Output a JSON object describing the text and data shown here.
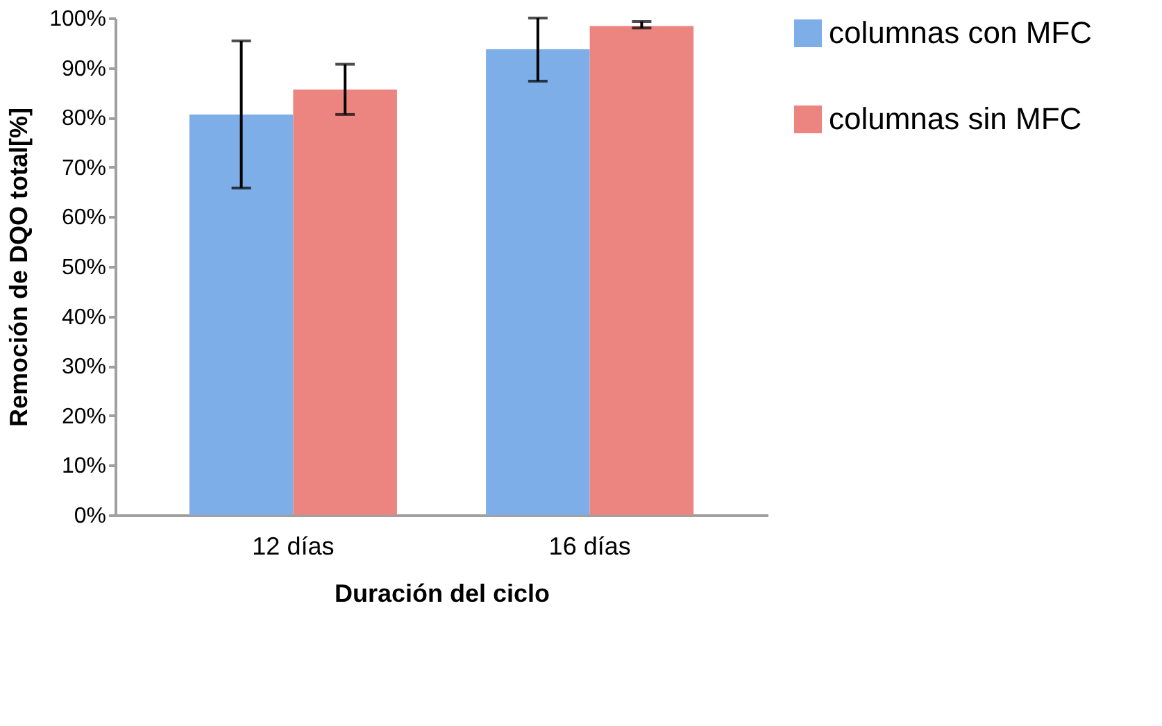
{
  "chart_data": {
    "type": "bar",
    "xlabel": "Duración del ciclo",
    "ylabel": "Remoción de DQO total[%]",
    "categories": [
      "12 días",
      "16 días"
    ],
    "series": [
      {
        "name": "columnas con MFC",
        "color": "#7eaee8",
        "values": [
          80.6,
          93.7
        ],
        "errors": [
          [
            65.8,
            95.4
          ],
          [
            87.3,
            100
          ]
        ]
      },
      {
        "name": "columnas sin MFC",
        "color": "#ec8580",
        "values": [
          85.6,
          98.4
        ],
        "errors": [
          [
            80.6,
            90.7
          ],
          [
            98.0,
            99.3
          ]
        ]
      }
    ],
    "ylim": [
      0,
      100
    ],
    "yticks": [
      {
        "value": 0,
        "label": "0%"
      },
      {
        "value": 10,
        "label": "10%"
      },
      {
        "value": 20,
        "label": "20%"
      },
      {
        "value": 30,
        "label": "30%"
      },
      {
        "value": 40,
        "label": "40%"
      },
      {
        "value": 50,
        "label": "50%"
      },
      {
        "value": 60,
        "label": "60%"
      },
      {
        "value": 70,
        "label": "70%"
      },
      {
        "value": 80,
        "label": "80%"
      },
      {
        "value": 90,
        "label": "90%"
      },
      {
        "value": 100,
        "label": "100%"
      }
    ],
    "grid": false,
    "legend": "right"
  }
}
